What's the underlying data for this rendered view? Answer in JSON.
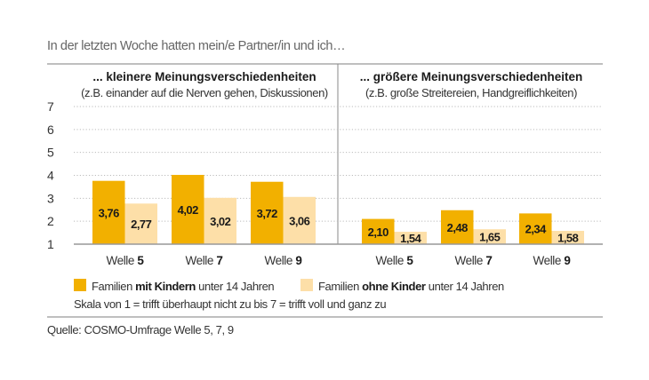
{
  "header": {
    "title": "In der letzten Woche hatten mein/e Partner/in und ich…"
  },
  "chart_data": [
    {
      "type": "bar",
      "title": "... kleinere Meinungsverschiedenheiten",
      "subtitle": "(z.B. einander auf die Nerven gehen, Diskussionen)",
      "categories": [
        {
          "prefix": "Welle ",
          "num": "5"
        },
        {
          "prefix": "Welle ",
          "num": "7"
        },
        {
          "prefix": "Welle ",
          "num": "9"
        }
      ],
      "series": [
        {
          "name": "Familien mit Kindern unter 14 Jahren",
          "values": [
            3.76,
            4.02,
            3.72
          ],
          "labels": [
            "3,76",
            "4,02",
            "3,72"
          ]
        },
        {
          "name": "Familien ohne Kinder unter 14 Jahren",
          "values": [
            2.77,
            3.02,
            3.06
          ],
          "labels": [
            "2,77",
            "3,02",
            "3,06"
          ]
        }
      ],
      "ylim": [
        1,
        7
      ],
      "yticks": [
        "1",
        "2",
        "3",
        "4",
        "5",
        "6",
        "7"
      ],
      "grid": true
    },
    {
      "type": "bar",
      "title": "... größere Meinungsverschiedenheiten",
      "subtitle": "(z.B. große Streitereien, Handgreiflichkeiten)",
      "categories": [
        {
          "prefix": "Welle ",
          "num": "5"
        },
        {
          "prefix": "Welle ",
          "num": "7"
        },
        {
          "prefix": "Welle ",
          "num": "9"
        }
      ],
      "series": [
        {
          "name": "Familien mit Kindern unter 14 Jahren",
          "values": [
            2.1,
            2.48,
            2.34
          ],
          "labels": [
            "2,10",
            "2,48",
            "2,34"
          ]
        },
        {
          "name": "Familien ohne Kinder unter 14 Jahren",
          "values": [
            1.54,
            1.65,
            1.58
          ],
          "labels": [
            "1,54",
            "1,65",
            "1,58"
          ]
        }
      ],
      "ylim": [
        1,
        7
      ],
      "grid": true
    }
  ],
  "legend": {
    "items": [
      {
        "pre": "Familien ",
        "bold": "mit Kindern",
        "post": " unter 14 Jahren",
        "color": "#F2B000"
      },
      {
        "pre": "Familien ",
        "bold": "ohne Kinder",
        "post": " unter 14 Jahren",
        "color": "#FDDFA8"
      }
    ],
    "scale_note": "Skala von 1 = trifft überhaupt nicht zu bis 7 = trifft voll und ganz zu"
  },
  "footer": {
    "source": "Quelle: COSMO-Umfrage Welle 5, 7, 9"
  }
}
